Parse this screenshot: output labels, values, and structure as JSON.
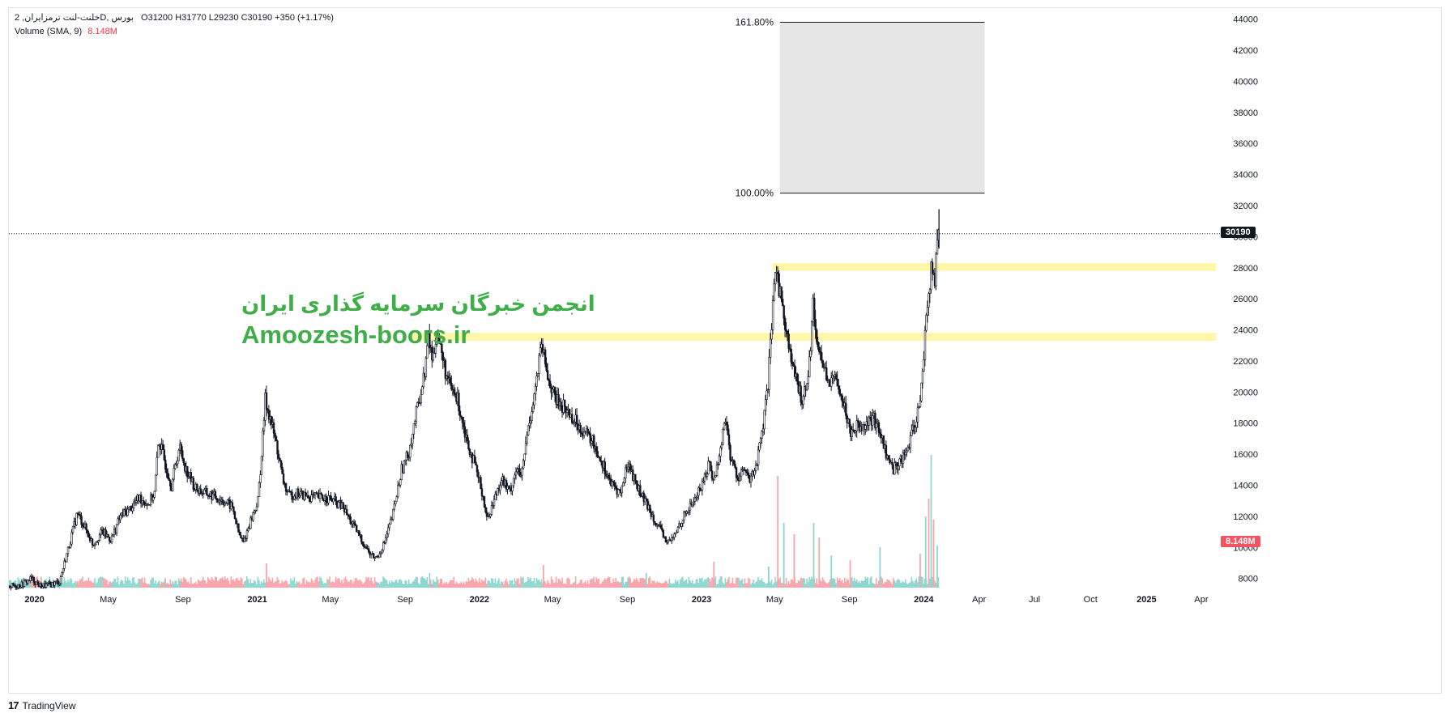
{
  "header": {
    "symbol_line": "خلنت-لنت ترمزایران, 2D, بورس",
    "ohlc": "O31200  H31770  L29230  C30190  +350 (+1.17%)",
    "volume_label": "Volume (SMA, 9)",
    "volume_value": "8.148M"
  },
  "watermark": {
    "persian": "انجمن خبرگان سرمایه گذاری ایران",
    "site": "Amoozesh-boors.ir"
  },
  "footer": {
    "brand": "TradingView",
    "logo_mark": "17"
  },
  "colors": {
    "candle": "#131722",
    "zone": "#fff59d",
    "fib_box": "#e6e6e6",
    "vol_up": "#8ed7cf",
    "vol_down": "#f9a5ac",
    "watermark": "#3fae49",
    "vol_badge": "#f7525f"
  },
  "chart_data": {
    "type": "candlestick",
    "y_axis": {
      "range": [
        7200,
        44400
      ],
      "ticks": [
        8000,
        10000,
        12000,
        14000,
        16000,
        18000,
        20000,
        22000,
        24000,
        26000,
        28000,
        30000,
        32000,
        34000,
        36000,
        38000,
        40000,
        42000,
        44000
      ],
      "tick_labels": [
        "8000",
        "10000",
        "12000",
        "14000",
        "16000",
        "18000",
        "20000",
        "22000",
        "24000",
        "26000",
        "28000",
        "30000",
        "32000",
        "34000",
        "36000",
        "38000",
        "40000",
        "42000",
        "44000"
      ]
    },
    "x_axis": {
      "range": [
        "2019-11-20",
        "2025-04-25"
      ],
      "ticks": [
        {
          "label": "2020",
          "date": "2020-01-01",
          "bold": true
        },
        {
          "label": "May",
          "date": "2020-05-01"
        },
        {
          "label": "Sep",
          "date": "2020-09-01"
        },
        {
          "label": "2021",
          "date": "2021-01-01",
          "bold": true
        },
        {
          "label": "May",
          "date": "2021-05-01"
        },
        {
          "label": "Sep",
          "date": "2021-09-01"
        },
        {
          "label": "2022",
          "date": "2022-01-01",
          "bold": true
        },
        {
          "label": "May",
          "date": "2022-05-01"
        },
        {
          "label": "Sep",
          "date": "2022-09-01"
        },
        {
          "label": "2023",
          "date": "2023-01-01",
          "bold": true
        },
        {
          "label": "May",
          "date": "2023-05-01"
        },
        {
          "label": "Sep",
          "date": "2023-09-01"
        },
        {
          "label": "2024",
          "date": "2024-01-01",
          "bold": true
        },
        {
          "label": "Apr",
          "date": "2024-04-01"
        },
        {
          "label": "Jul",
          "date": "2024-07-01"
        },
        {
          "label": "Oct",
          "date": "2024-10-01"
        },
        {
          "label": "2025",
          "date": "2025-01-01",
          "bold": true
        },
        {
          "label": "Apr",
          "date": "2025-04-01"
        }
      ]
    },
    "last_price": 30190,
    "last_price_label": "30190",
    "price_path": [
      [
        "2019-11-20",
        7500
      ],
      [
        "2019-12-10",
        7600
      ],
      [
        "2019-12-25",
        8000
      ],
      [
        "2020-01-10",
        7500
      ],
      [
        "2020-01-25",
        7600
      ],
      [
        "2020-02-10",
        7800
      ],
      [
        "2020-02-25",
        10000
      ],
      [
        "2020-03-10",
        12200
      ],
      [
        "2020-03-20",
        11500
      ],
      [
        "2020-04-05",
        10200
      ],
      [
        "2020-04-20",
        11000
      ],
      [
        "2020-05-05",
        10500
      ],
      [
        "2020-05-20",
        12000
      ],
      [
        "2020-06-05",
        12500
      ],
      [
        "2020-06-20",
        13200
      ],
      [
        "2020-07-05",
        12800
      ],
      [
        "2020-07-15",
        13500
      ],
      [
        "2020-07-22",
        17000
      ],
      [
        "2020-08-01",
        15500
      ],
      [
        "2020-08-12",
        14000
      ],
      [
        "2020-08-25",
        16500
      ],
      [
        "2020-09-05",
        15000
      ],
      [
        "2020-09-20",
        13800
      ],
      [
        "2020-10-05",
        13500
      ],
      [
        "2020-10-20",
        13300
      ],
      [
        "2020-11-05",
        13000
      ],
      [
        "2020-11-20",
        12600
      ],
      [
        "2020-12-01",
        10800
      ],
      [
        "2020-12-08",
        10300
      ],
      [
        "2020-12-18",
        11500
      ],
      [
        "2021-01-01",
        13000
      ],
      [
        "2021-01-08",
        16500
      ],
      [
        "2021-01-13",
        19500
      ],
      [
        "2021-01-20",
        18500
      ],
      [
        "2021-02-01",
        16500
      ],
      [
        "2021-02-10",
        14500
      ],
      [
        "2021-02-20",
        13300
      ],
      [
        "2021-03-05",
        13500
      ],
      [
        "2021-03-20",
        13300
      ],
      [
        "2021-04-10",
        13200
      ],
      [
        "2021-04-25",
        13200
      ],
      [
        "2021-05-05",
        13000
      ],
      [
        "2021-05-20",
        12600
      ],
      [
        "2021-06-05",
        11500
      ],
      [
        "2021-06-20",
        10500
      ],
      [
        "2021-07-05",
        9500
      ],
      [
        "2021-07-15",
        9300
      ],
      [
        "2021-07-28",
        10300
      ],
      [
        "2021-08-10",
        12000
      ],
      [
        "2021-08-25",
        15000
      ],
      [
        "2021-09-05",
        16000
      ],
      [
        "2021-09-20",
        19000
      ],
      [
        "2021-10-01",
        21000
      ],
      [
        "2021-10-08",
        23500
      ],
      [
        "2021-10-15",
        22000
      ],
      [
        "2021-10-22",
        24000
      ],
      [
        "2021-11-01",
        22000
      ],
      [
        "2021-11-10",
        20500
      ],
      [
        "2021-11-25",
        19500
      ],
      [
        "2021-12-10",
        17000
      ],
      [
        "2021-12-25",
        15000
      ],
      [
        "2022-01-05",
        13500
      ],
      [
        "2022-01-12",
        11800
      ],
      [
        "2022-01-22",
        12800
      ],
      [
        "2022-02-05",
        14500
      ],
      [
        "2022-02-18",
        13500
      ],
      [
        "2022-03-01",
        15000
      ],
      [
        "2022-03-10",
        14500
      ],
      [
        "2022-03-20",
        17500
      ],
      [
        "2022-04-01",
        20000
      ],
      [
        "2022-04-12",
        23000
      ],
      [
        "2022-04-22",
        21000
      ],
      [
        "2022-05-05",
        19500
      ],
      [
        "2022-05-20",
        19000
      ],
      [
        "2022-06-05",
        18200
      ],
      [
        "2022-06-20",
        17500
      ],
      [
        "2022-07-05",
        16800
      ],
      [
        "2022-07-20",
        15500
      ],
      [
        "2022-08-05",
        14000
      ],
      [
        "2022-08-20",
        13500
      ],
      [
        "2022-09-01",
        15500
      ],
      [
        "2022-09-10",
        14500
      ],
      [
        "2022-09-25",
        13200
      ],
      [
        "2022-10-10",
        12200
      ],
      [
        "2022-10-25",
        11000
      ],
      [
        "2022-11-05",
        10300
      ],
      [
        "2022-11-15",
        10600
      ],
      [
        "2022-11-28",
        11800
      ],
      [
        "2022-12-10",
        12500
      ],
      [
        "2022-12-25",
        13500
      ],
      [
        "2023-01-05",
        14500
      ],
      [
        "2023-01-12",
        15500
      ],
      [
        "2023-01-20",
        14200
      ],
      [
        "2023-02-01",
        16500
      ],
      [
        "2023-02-08",
        18500
      ],
      [
        "2023-02-15",
        16000
      ],
      [
        "2023-02-28",
        14500
      ],
      [
        "2023-03-10",
        15000
      ],
      [
        "2023-03-20",
        14200
      ],
      [
        "2023-04-01",
        15500
      ],
      [
        "2023-04-10",
        17500
      ],
      [
        "2023-04-18",
        20000
      ],
      [
        "2023-04-25",
        24000
      ],
      [
        "2023-05-02",
        28500
      ],
      [
        "2023-05-08",
        26500
      ],
      [
        "2023-05-15",
        25000
      ],
      [
        "2023-05-25",
        22500
      ],
      [
        "2023-06-05",
        20500
      ],
      [
        "2023-06-15",
        19500
      ],
      [
        "2023-06-25",
        21500
      ],
      [
        "2023-07-02",
        25500
      ],
      [
        "2023-07-10",
        23000
      ],
      [
        "2023-07-20",
        21500
      ],
      [
        "2023-08-01",
        20500
      ],
      [
        "2023-08-10",
        21000
      ],
      [
        "2023-08-20",
        19500
      ],
      [
        "2023-09-01",
        17500
      ],
      [
        "2023-09-10",
        17800
      ],
      [
        "2023-09-25",
        18000
      ],
      [
        "2023-10-10",
        18200
      ],
      [
        "2023-10-20",
        17500
      ],
      [
        "2023-10-30",
        16000
      ],
      [
        "2023-11-10",
        15000
      ],
      [
        "2023-11-20",
        15500
      ],
      [
        "2023-12-01",
        16000
      ],
      [
        "2023-12-10",
        17000
      ],
      [
        "2023-12-20",
        18500
      ],
      [
        "2023-12-28",
        20500
      ],
      [
        "2024-01-03",
        24500
      ],
      [
        "2024-01-08",
        26500
      ],
      [
        "2024-01-13",
        28000
      ],
      [
        "2024-01-18",
        27000
      ],
      [
        "2024-01-22",
        29800
      ],
      [
        "2024-01-25",
        30190
      ]
    ],
    "fib_levels": [
      {
        "label": "161.80%",
        "price": 43800,
        "from": "2023-05-10",
        "to": "2024-04-10"
      },
      {
        "label": "100.00%",
        "price": 32800,
        "from": "2023-05-10",
        "to": "2024-04-10"
      }
    ],
    "zones": [
      {
        "price_low": 27800,
        "price_high": 28300,
        "from": "2023-04-28",
        "to": "2025-04-25"
      },
      {
        "price_low": 23300,
        "price_high": 23800,
        "from": "2021-09-12",
        "to": "2025-04-25"
      }
    ],
    "volume": {
      "last_label": "8.148M",
      "bars": [
        [
          "2020-03-10",
          0.04
        ],
        [
          "2020-08-01",
          0.05
        ],
        [
          "2021-01-15",
          0.15
        ],
        [
          "2021-10-10",
          0.09
        ],
        [
          "2022-04-15",
          0.14
        ],
        [
          "2022-10-01",
          0.09
        ],
        [
          "2023-01-20",
          0.16
        ],
        [
          "2023-04-20",
          0.13
        ],
        [
          "2023-05-05",
          0.69
        ],
        [
          "2023-05-15",
          0.4
        ],
        [
          "2023-06-01",
          0.33
        ],
        [
          "2023-07-03",
          0.4
        ],
        [
          "2023-07-12",
          0.31
        ],
        [
          "2023-08-01",
          0.2
        ],
        [
          "2023-09-01",
          0.17
        ],
        [
          "2023-10-20",
          0.25
        ],
        [
          "2023-12-25",
          0.21
        ],
        [
          "2024-01-03",
          0.44
        ],
        [
          "2024-01-08",
          0.55
        ],
        [
          "2024-01-12",
          0.82
        ],
        [
          "2024-01-16",
          0.42
        ],
        [
          "2024-01-22",
          0.26
        ]
      ]
    }
  }
}
